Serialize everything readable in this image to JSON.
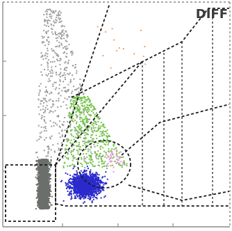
{
  "chart_data": {
    "type": "scatter",
    "title": "DIFF",
    "xlabel": "",
    "ylabel": "",
    "xlim": [
      0,
      100
    ],
    "ylim": [
      0,
      100
    ],
    "grid": false,
    "colors": {
      "lymphocytes": "#2a2acc",
      "monocytes": "#74c24a",
      "neutrophils": "#6b6e6b",
      "eosinophils": "#f0a060",
      "basophils": "#e89ae0",
      "debris": "#9a9d9a",
      "gates": "#1a1a1a"
    },
    "series": [
      {
        "key": "neutrophils",
        "cluster": {
          "x": [
            13,
            23
          ],
          "y": [
            8,
            30
          ],
          "n": 2600,
          "shape": "band"
        }
      },
      {
        "key": "debris",
        "cluster": {
          "x": [
            14,
            44
          ],
          "y": [
            30,
            97
          ],
          "n": 520,
          "shape": "fan"
        }
      },
      {
        "key": "monocytes",
        "cluster": {
          "x": [
            26,
            56
          ],
          "y": [
            26,
            58
          ],
          "n": 520,
          "shape": "fan"
        }
      },
      {
        "key": "lymphocytes",
        "cluster": {
          "x": [
            23,
            50
          ],
          "y": [
            8,
            29
          ],
          "n": 1500,
          "shape": "blob"
        }
      },
      {
        "key": "basophils",
        "cluster": {
          "x": [
            40,
            60
          ],
          "y": [
            22,
            38
          ],
          "n": 40,
          "shape": "blob"
        }
      },
      {
        "key": "eosinophils",
        "cluster": {
          "x": [
            40,
            64
          ],
          "y": [
            68,
            90
          ],
          "n": 14,
          "shape": "sparse"
        }
      }
    ]
  }
}
